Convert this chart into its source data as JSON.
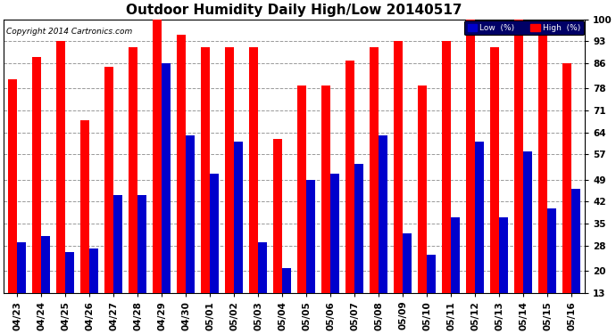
{
  "title": "Outdoor Humidity Daily High/Low 20140517",
  "copyright": "Copyright 2014 Cartronics.com",
  "categories": [
    "04/23",
    "04/24",
    "04/25",
    "04/26",
    "04/27",
    "04/28",
    "04/29",
    "04/30",
    "05/01",
    "05/02",
    "05/03",
    "05/04",
    "05/05",
    "05/06",
    "05/07",
    "05/08",
    "05/09",
    "05/10",
    "05/11",
    "05/12",
    "05/13",
    "05/14",
    "05/15",
    "05/16"
  ],
  "high_values": [
    81,
    88,
    93,
    68,
    85,
    91,
    100,
    95,
    91,
    91,
    91,
    62,
    79,
    79,
    87,
    91,
    93,
    79,
    93,
    100,
    91,
    100,
    99,
    86
  ],
  "low_values": [
    29,
    31,
    26,
    27,
    44,
    44,
    86,
    63,
    51,
    61,
    29,
    21,
    49,
    51,
    54,
    63,
    32,
    25,
    37,
    61,
    37,
    58,
    40,
    46
  ],
  "high_color": "#ff0000",
  "low_color": "#0000cc",
  "bg_color": "#ffffff",
  "plot_bg_color": "#ffffff",
  "grid_color": "#999999",
  "yticks": [
    13,
    20,
    28,
    35,
    42,
    49,
    57,
    64,
    71,
    78,
    86,
    93,
    100
  ],
  "ymin": 13,
  "ymax": 100,
  "title_fontsize": 11,
  "tick_fontsize": 7.5,
  "legend_low_label": "Low  (%)",
  "legend_high_label": "High  (%)",
  "bar_width": 0.38,
  "figwidth": 6.9,
  "figheight": 3.75,
  "dpi": 100
}
